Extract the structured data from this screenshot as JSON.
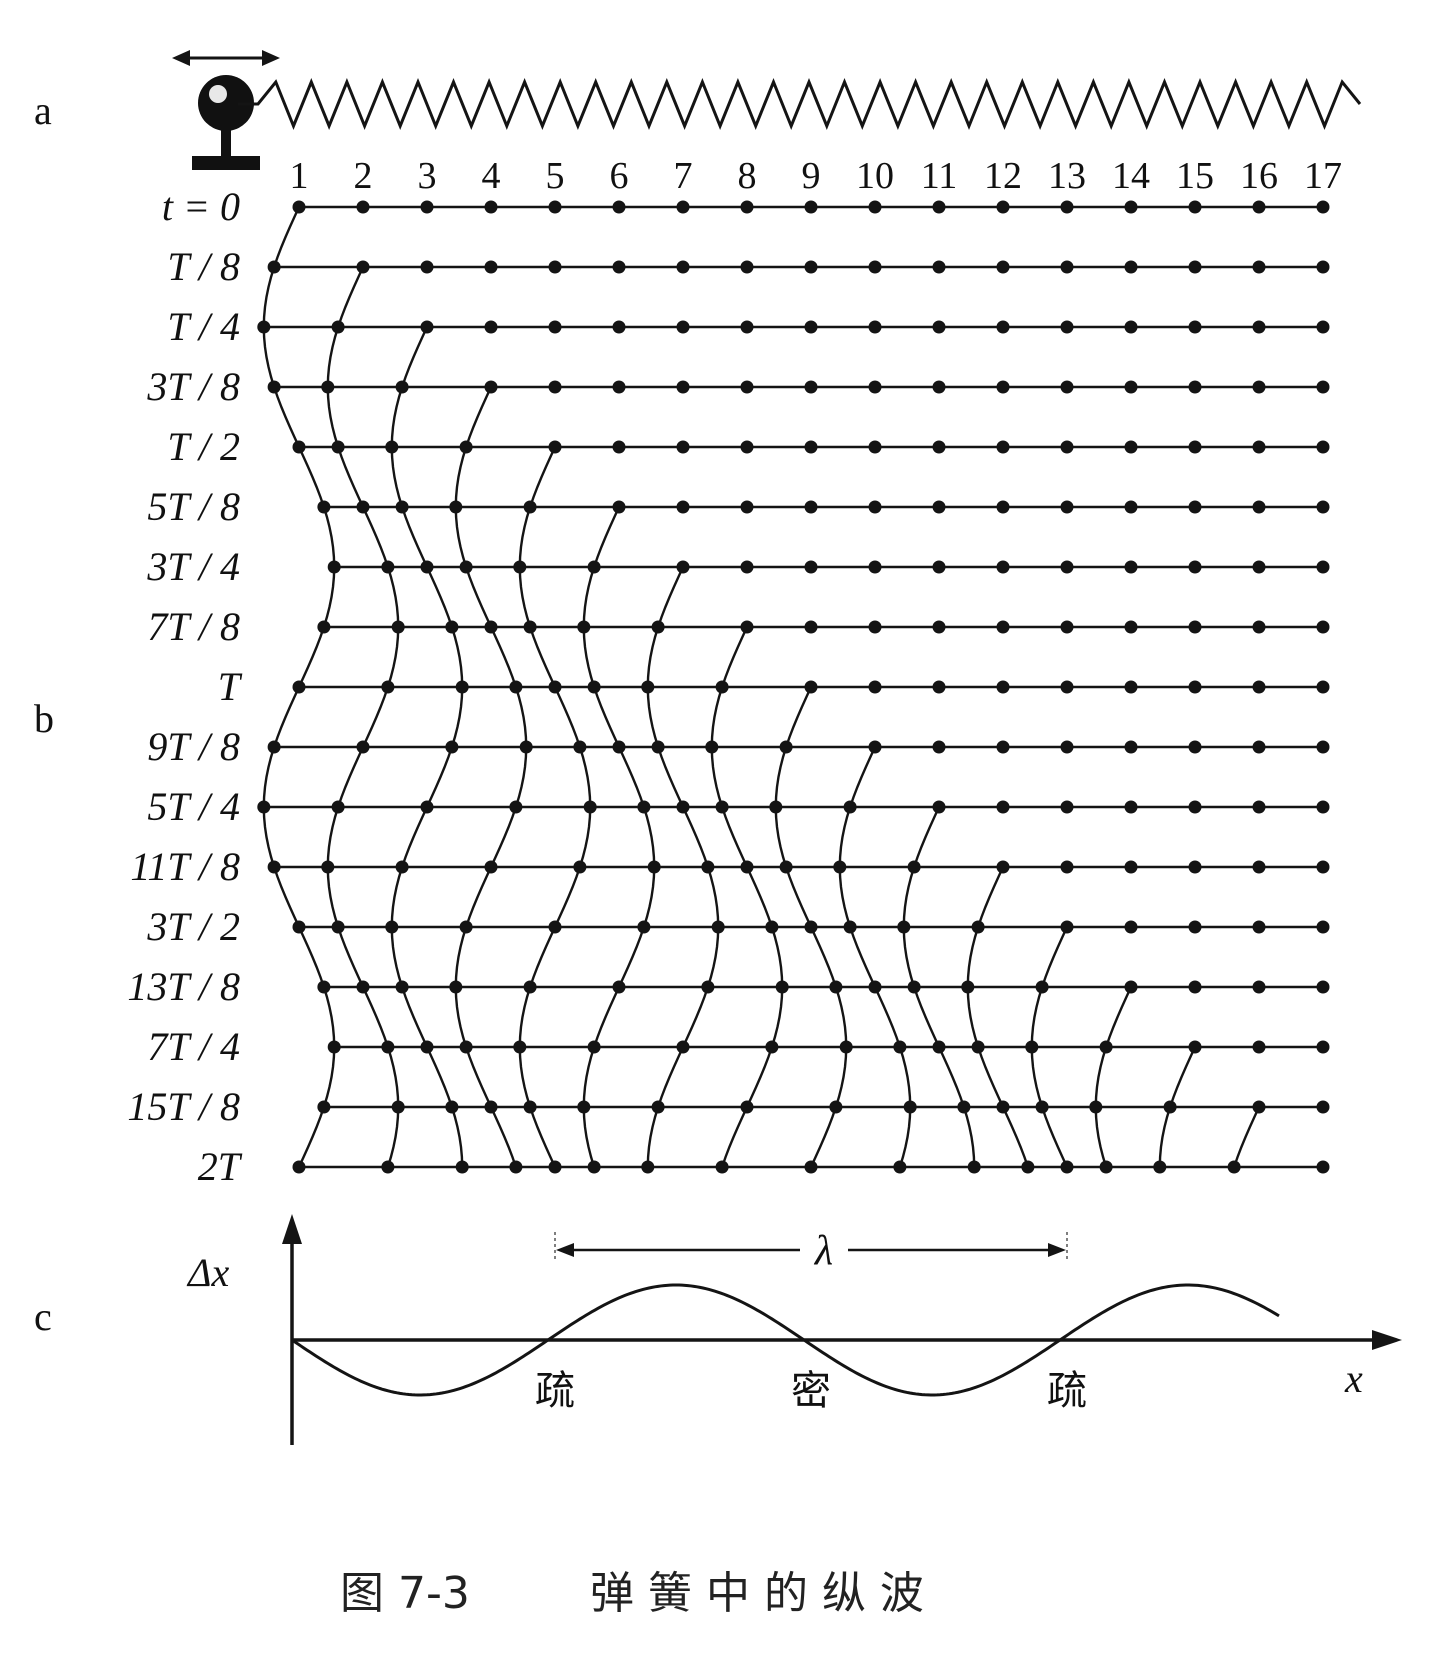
{
  "panel_labels": {
    "a": "a",
    "b": "b",
    "c": "c"
  },
  "particle_numbers": [
    "1",
    "2",
    "3",
    "4",
    "5",
    "6",
    "7",
    "8",
    "9",
    "10",
    "11",
    "12",
    "13",
    "14",
    "15",
    "16",
    "17"
  ],
  "time_labels": [
    "t = 0",
    "T / 8",
    "T / 4",
    "3T / 8",
    "T / 2",
    "5T / 8",
    "3T / 4",
    "7T / 8",
    "T",
    "9T / 8",
    "5T / 4",
    "11T / 8",
    "3T / 2",
    "13T / 8",
    "7T / 4",
    "15T / 8",
    "2T"
  ],
  "graph": {
    "y_axis_label": "Δx",
    "x_axis_label": "x",
    "wavelength_label": "λ",
    "region_labels": [
      "疏",
      "密",
      "疏"
    ]
  },
  "caption": {
    "figure_number": "图 7-3",
    "title": "弹 簧 中 的 纵 波"
  },
  "wave": {
    "particles": 17,
    "rows": 17,
    "amplitude_over_spacing": 0.55,
    "wavelength_in_spacings": 8
  }
}
